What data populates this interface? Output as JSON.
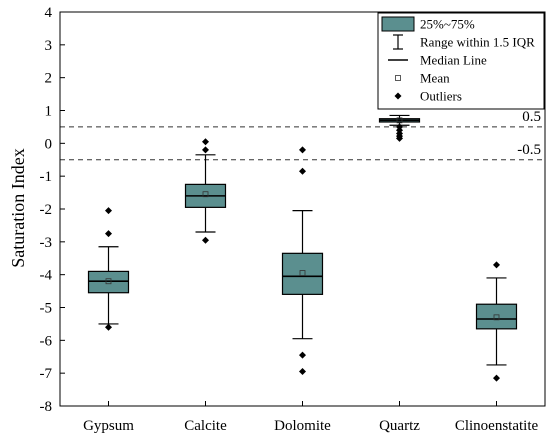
{
  "chart_data": {
    "type": "boxplot",
    "ylabel": "Saturation Index",
    "ylim": [
      -8,
      4
    ],
    "yticks": [
      4,
      3,
      2,
      1,
      0,
      -1,
      -2,
      -3,
      -4,
      -5,
      -6,
      -7,
      -8
    ],
    "categories": [
      "Gypsum",
      "Calcite",
      "Dolomite",
      "Quartz",
      "Clinoenstatite"
    ],
    "box_color": "#5b8f8f",
    "boxes": [
      {
        "category": "Gypsum",
        "whisker_low": -5.5,
        "q1": -4.55,
        "median": -4.2,
        "mean": -4.2,
        "q3": -3.9,
        "whisker_high": -3.15,
        "outliers": [
          -2.05,
          -2.75,
          -5.6
        ]
      },
      {
        "category": "Calcite",
        "whisker_low": -2.7,
        "q1": -1.95,
        "median": -1.6,
        "mean": -1.55,
        "q3": -1.25,
        "whisker_high": -0.35,
        "outliers": [
          0.05,
          -0.2,
          -2.95
        ]
      },
      {
        "category": "Dolomite",
        "whisker_low": -5.95,
        "q1": -4.6,
        "median": -4.05,
        "mean": -3.95,
        "q3": -3.35,
        "whisker_high": -2.05,
        "outliers": [
          -0.2,
          -0.85,
          -6.45,
          -6.95
        ]
      },
      {
        "category": "Quartz",
        "whisker_low": 0.55,
        "q1": 0.65,
        "median": 0.7,
        "mean": 0.7,
        "q3": 0.75,
        "whisker_high": 0.85,
        "outliers": [
          0.5,
          0.4,
          0.3,
          0.22,
          0.15
        ]
      },
      {
        "category": "Clinoenstatite",
        "whisker_low": -6.75,
        "q1": -5.65,
        "median": -5.35,
        "mean": -5.3,
        "q3": -4.9,
        "whisker_high": -4.1,
        "outliers": [
          -3.7,
          -7.15
        ]
      }
    ],
    "reference_lines": [
      {
        "value": 0.5,
        "label": "0.5"
      },
      {
        "value": -0.5,
        "label": "-0.5"
      }
    ],
    "legend": {
      "position": "top-right",
      "items": [
        {
          "symbol": "box",
          "label": "25%~75%"
        },
        {
          "symbol": "range",
          "label": "Range within 1.5 IQR"
        },
        {
          "symbol": "line",
          "label": "Median Line"
        },
        {
          "symbol": "square",
          "label": "Mean"
        },
        {
          "symbol": "diamond",
          "label": "Outliers"
        }
      ]
    }
  }
}
